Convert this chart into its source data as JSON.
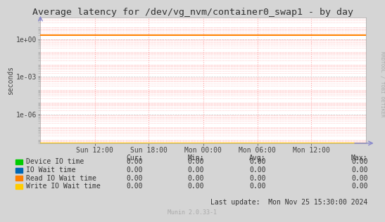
{
  "title": "Average latency for /dev/vg_nvm/container0_swap1 - by day",
  "ylabel": "seconds",
  "bg_color": "#d5d5d5",
  "plot_bg_color": "#ffffff",
  "grid_color_major": "#cccccc",
  "grid_color_minor": "#ffaaaa",
  "x_ticks_labels": [
    "Sun 12:00",
    "Sun 18:00",
    "Mon 00:00",
    "Mon 06:00",
    "Mon 12:00"
  ],
  "x_ticks_pos": [
    0.167,
    0.333,
    0.5,
    0.667,
    0.833
  ],
  "ylim_low": 5e-09,
  "ylim_high": 50.0,
  "yticks": [
    1e-06,
    0.001,
    1.0
  ],
  "ytick_labels": [
    "1e-06",
    "1e-03",
    "1e+00"
  ],
  "orange_line_y": 2.0,
  "yellow_line_y": 5e-09,
  "legend_items": [
    {
      "label": "Device IO time",
      "color": "#00cc00"
    },
    {
      "label": "IO Wait time",
      "color": "#0066b3"
    },
    {
      "label": "Read IO Wait time",
      "color": "#ff8000"
    },
    {
      "label": "Write IO Wait time",
      "color": "#ffcc00"
    }
  ],
  "table_headers": [
    "Cur:",
    "Min:",
    "Avg:",
    "Max:"
  ],
  "table_values": [
    [
      "0.00",
      "0.00",
      "0.00",
      "0.00"
    ],
    [
      "0.00",
      "0.00",
      "0.00",
      "0.00"
    ],
    [
      "0.00",
      "0.00",
      "0.00",
      "0.00"
    ],
    [
      "0.00",
      "0.00",
      "0.00",
      "0.00"
    ]
  ],
  "last_update": "Last update:  Mon Nov 25 15:30:00 2024",
  "munin_label": "Munin 2.0.33-1",
  "rrdtool_label": "RRDTOOL / TOBI OETIKER",
  "title_fontsize": 9.5,
  "axis_fontsize": 7,
  "legend_fontsize": 7,
  "table_fontsize": 7
}
